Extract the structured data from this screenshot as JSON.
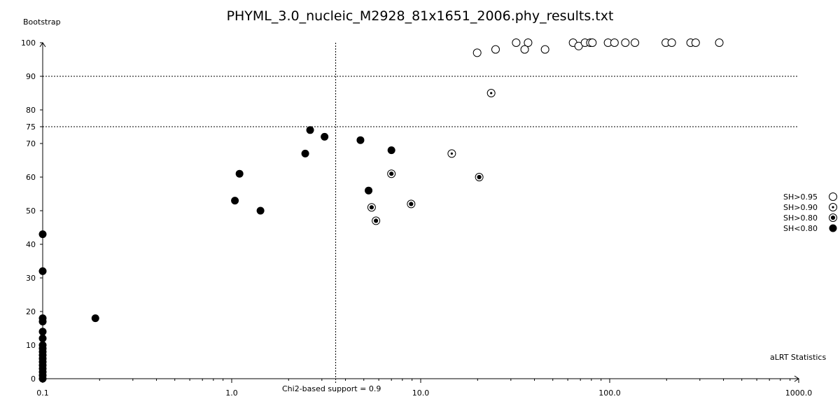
{
  "chart_data": {
    "type": "scatter",
    "title": "PHYML_3.0_nucleic_M2928_81x1651_2006.phy_results.txt",
    "ylabel": "Bootstrap",
    "xlabel": "aLRT Statistics",
    "x_scale": "log",
    "xlim": [
      0.1,
      1000
    ],
    "ylim": [
      0,
      100
    ],
    "x_ticks": [
      "0.1",
      "1.0",
      "10.0",
      "100.0",
      "1000.0"
    ],
    "y_ticks": [
      "0",
      "10",
      "20",
      "30",
      "40",
      "50",
      "60",
      "70",
      "75",
      "80",
      "90",
      "100"
    ],
    "reference_lines": {
      "vertical_label": "Chi2-based support = 0.9",
      "vertical_x": 3.55,
      "horizontal_y": [
        75,
        90
      ]
    },
    "legend": {
      "position": "right",
      "entries": [
        {
          "label": "SH>0.95",
          "marker": "open"
        },
        {
          "label": "SH>0.90",
          "marker": "dot"
        },
        {
          "label": "SH>0.80",
          "marker": "ringed"
        },
        {
          "label": "SH<0.80",
          "marker": "filled"
        }
      ]
    },
    "series": [
      {
        "marker": "open",
        "x": [
          19.9,
          24.9,
          32,
          37,
          35.5,
          45.5,
          64,
          68.5,
          74,
          79,
          81,
          98,
          106,
          121,
          136,
          198,
          213,
          268,
          285,
          380
        ],
        "y": [
          97,
          98,
          100,
          100,
          98,
          98,
          100,
          99,
          100,
          100,
          100,
          100,
          100,
          100,
          100,
          100,
          100,
          100,
          100,
          100
        ]
      },
      {
        "marker": "dot",
        "x": [
          23.6,
          14.6
        ],
        "y": [
          85,
          67
        ]
      },
      {
        "marker": "ringed",
        "x": [
          7.0,
          20.4,
          5.5,
          8.9,
          5.8
        ],
        "y": [
          61,
          60,
          51,
          52,
          47
        ]
      },
      {
        "marker": "filled",
        "x": [
          2.6,
          3.1,
          4.8,
          2.45,
          7.0,
          1.1,
          1.04,
          1.42,
          5.3,
          0.19,
          0.1,
          0.1,
          0.1,
          0.1,
          0.1,
          0.1,
          0.1,
          0.1,
          0.1,
          0.1,
          0.1,
          0.1,
          0.1,
          0.1,
          0.1,
          0.1,
          0.1
        ],
        "y": [
          74,
          72,
          71,
          67,
          68,
          61,
          53,
          50,
          56,
          18,
          43,
          32,
          18,
          17,
          14,
          12,
          10,
          9,
          8,
          7,
          6,
          5,
          4,
          3,
          2,
          1,
          0
        ]
      }
    ]
  }
}
